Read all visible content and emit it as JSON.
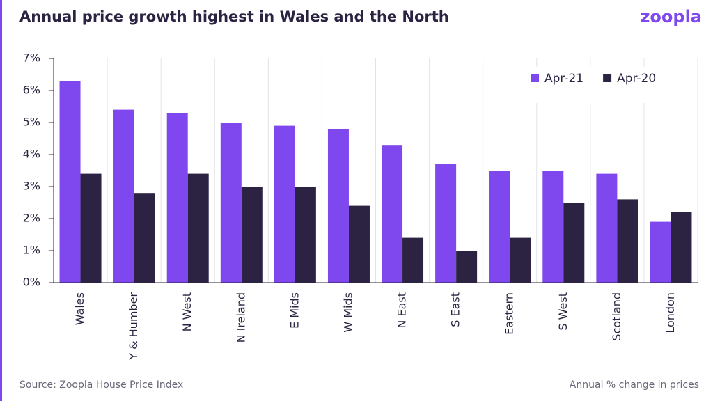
{
  "chart_data": {
    "type": "bar",
    "title": "Annual price growth highest in Wales and the North",
    "brand": "zoopla",
    "source": "Source: Zoopla House Price Index",
    "note": "Annual % change in prices",
    "categories": [
      "Wales",
      "Y & Humber",
      "N West",
      "N Ireland",
      "E Mids",
      "W Mids",
      "N East",
      "S East",
      "Eastern",
      "S West",
      "Scotland",
      "London"
    ],
    "series": [
      {
        "name": "Apr-21",
        "color": "#7f48ef",
        "values": [
          6.3,
          5.4,
          5.3,
          5.0,
          4.9,
          4.8,
          4.3,
          3.7,
          3.5,
          3.5,
          3.4,
          1.9
        ]
      },
      {
        "name": "Apr-20",
        "color": "#2b2341",
        "values": [
          3.4,
          2.8,
          3.4,
          3.0,
          3.0,
          2.4,
          1.4,
          1.0,
          1.4,
          2.5,
          2.6,
          2.2
        ]
      }
    ],
    "ylim": [
      0,
      7
    ],
    "yticks": [
      {
        "value": 0,
        "label": "0%"
      },
      {
        "value": 1,
        "label": "1%"
      },
      {
        "value": 2,
        "label": "2%"
      },
      {
        "value": 3,
        "label": "3%"
      },
      {
        "value": 4,
        "label": "4%"
      },
      {
        "value": 5,
        "label": "5%"
      },
      {
        "value": 6,
        "label": "6%"
      },
      {
        "value": 7,
        "label": "7%"
      }
    ],
    "grid": true,
    "legend": "top-right"
  }
}
